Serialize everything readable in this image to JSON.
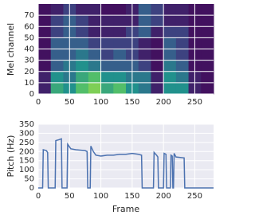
{
  "chart_data": [
    {
      "type": "heatmap",
      "ylabel": "Mel channel",
      "colormap": "viridis",
      "grid": true,
      "xlim": [
        0,
        280
      ],
      "ylim": [
        0,
        80
      ],
      "xticks": [
        0,
        50,
        100,
        150,
        200,
        250
      ],
      "yticks": [
        0,
        10,
        20,
        30,
        40,
        50,
        60,
        70
      ],
      "z": [
        [
          0.1,
          0.6,
          0.5,
          0.7,
          0.8,
          0.6,
          0.7,
          0.5,
          0.4,
          0.1,
          0.5,
          0.5,
          0.1,
          0.05
        ],
        [
          0.1,
          0.5,
          0.4,
          0.6,
          0.7,
          0.5,
          0.5,
          0.4,
          0.4,
          0.1,
          0.5,
          0.4,
          0.1,
          0.05
        ],
        [
          0.05,
          0.3,
          0.4,
          0.5,
          0.4,
          0.3,
          0.3,
          0.3,
          0.2,
          0.05,
          0.4,
          0.3,
          0.05,
          0.05
        ],
        [
          0.05,
          0.3,
          0.3,
          0.4,
          0.3,
          0.2,
          0.3,
          0.2,
          0.1,
          0.05,
          0.3,
          0.2,
          0.05,
          0.05
        ],
        [
          0.05,
          0.3,
          0.3,
          0.3,
          0.2,
          0.2,
          0.2,
          0.2,
          0.1,
          0.05,
          0.3,
          0.2,
          0.05,
          0.05
        ],
        [
          0.05,
          0.2,
          0.3,
          0.2,
          0.1,
          0.1,
          0.1,
          0.2,
          0.3,
          0.1,
          0.2,
          0.2,
          0.05,
          0.05
        ],
        [
          0.05,
          0.2,
          0.3,
          0.2,
          0.1,
          0.1,
          0.1,
          0.1,
          0.3,
          0.2,
          0.1,
          0.1,
          0.05,
          0.05
        ],
        [
          0.05,
          0.1,
          0.2,
          0.1,
          0.1,
          0.05,
          0.05,
          0.1,
          0.3,
          0.2,
          0.1,
          0.1,
          0.05,
          0.05
        ]
      ]
    },
    {
      "type": "line",
      "xlabel": "Frame",
      "ylabel": "Pitch (Hz)",
      "color": "#4c72b0",
      "grid": true,
      "xlim": [
        0,
        280
      ],
      "ylim": [
        0,
        350
      ],
      "xticks": [
        0,
        50,
        100,
        150,
        200,
        250
      ],
      "yticks": [
        0,
        50,
        100,
        150,
        200,
        250,
        300,
        350
      ],
      "x": [
        0,
        7,
        8,
        13,
        15,
        16,
        27,
        28,
        33,
        37,
        38,
        46,
        47,
        52,
        60,
        75,
        78,
        79,
        83,
        84,
        88,
        92,
        100,
        110,
        120,
        130,
        140,
        150,
        160,
        165,
        166,
        184,
        185,
        189,
        191,
        192,
        200,
        201,
        204,
        205,
        211,
        212,
        214,
        215,
        216,
        217,
        220,
        233,
        234,
        280
      ],
      "values": [
        0,
        0,
        210,
        205,
        195,
        0,
        0,
        260,
        265,
        270,
        0,
        0,
        240,
        215,
        210,
        205,
        200,
        0,
        0,
        230,
        200,
        180,
        175,
        180,
        180,
        185,
        185,
        190,
        185,
        180,
        0,
        0,
        195,
        180,
        170,
        0,
        0,
        190,
        185,
        0,
        0,
        180,
        175,
        0,
        0,
        190,
        170,
        165,
        0,
        0
      ]
    }
  ]
}
